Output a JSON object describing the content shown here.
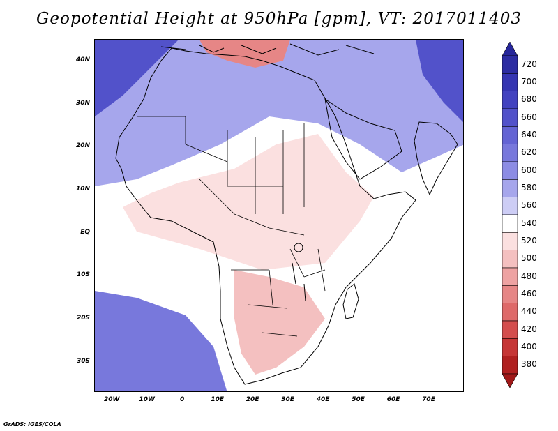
{
  "title": "Geopotential Height at 950hPa [gpm], VT: 2017011403",
  "credit": "GrADS: IGES/COLA",
  "map": {
    "extent": {
      "lon_min": -25,
      "lon_max": 80,
      "lat_min": -37,
      "lat_max": 45
    },
    "lat_ticks": [
      {
        "value": 40,
        "label": "40N"
      },
      {
        "value": 30,
        "label": "30N"
      },
      {
        "value": 20,
        "label": "20N"
      },
      {
        "value": 10,
        "label": "10N"
      },
      {
        "value": 0,
        "label": "EQ"
      },
      {
        "value": -10,
        "label": "10S"
      },
      {
        "value": -20,
        "label": "20S"
      },
      {
        "value": -30,
        "label": "30S"
      }
    ],
    "lon_ticks": [
      {
        "value": -20,
        "label": "20W"
      },
      {
        "value": -10,
        "label": "10W"
      },
      {
        "value": 0,
        "label": "0"
      },
      {
        "value": 10,
        "label": "10E"
      },
      {
        "value": 20,
        "label": "20E"
      },
      {
        "value": 30,
        "label": "30E"
      },
      {
        "value": 40,
        "label": "40E"
      },
      {
        "value": 50,
        "label": "50E"
      },
      {
        "value": 60,
        "label": "60E"
      },
      {
        "value": 70,
        "label": "70E"
      }
    ]
  },
  "colorbar": {
    "levels": [
      {
        "label": "720",
        "color": "#2c2ca2"
      },
      {
        "label": "700",
        "color": "#3535b2"
      },
      {
        "label": "680",
        "color": "#4242c0"
      },
      {
        "label": "660",
        "color": "#5252ca"
      },
      {
        "label": "640",
        "color": "#6464d4"
      },
      {
        "label": "620",
        "color": "#7878dc"
      },
      {
        "label": "600",
        "color": "#8c8ce4"
      },
      {
        "label": "580",
        "color": "#a6a6ec"
      },
      {
        "label": "560",
        "color": "#cdcdf5"
      },
      {
        "label": "540",
        "color": "#ffffff"
      },
      {
        "label": "520",
        "color": "#fbe0e0"
      },
      {
        "label": "500",
        "color": "#f4c0c0"
      },
      {
        "label": "480",
        "color": "#eea2a2"
      },
      {
        "label": "460",
        "color": "#e68686"
      },
      {
        "label": "440",
        "color": "#de6a6a"
      },
      {
        "label": "420",
        "color": "#d44e4e"
      },
      {
        "label": "400",
        "color": "#c63636"
      },
      {
        "label": "380",
        "color": "#b02020"
      }
    ],
    "top_triangle_color": "#26269a",
    "bottom_triangle_color": "#a01818"
  },
  "field_regions": [
    {
      "id": "background",
      "level": "540"
    },
    {
      "id": "north-africa",
      "level": "580"
    },
    {
      "id": "northwest-high",
      "level": "660"
    },
    {
      "id": "sahel",
      "level": "520"
    },
    {
      "id": "southern-africa",
      "level": "500"
    },
    {
      "id": "south-atlantic-high",
      "level": "620"
    },
    {
      "id": "mediterranean-low",
      "level": "460"
    },
    {
      "id": "himalaya-high",
      "level": "660"
    }
  ]
}
